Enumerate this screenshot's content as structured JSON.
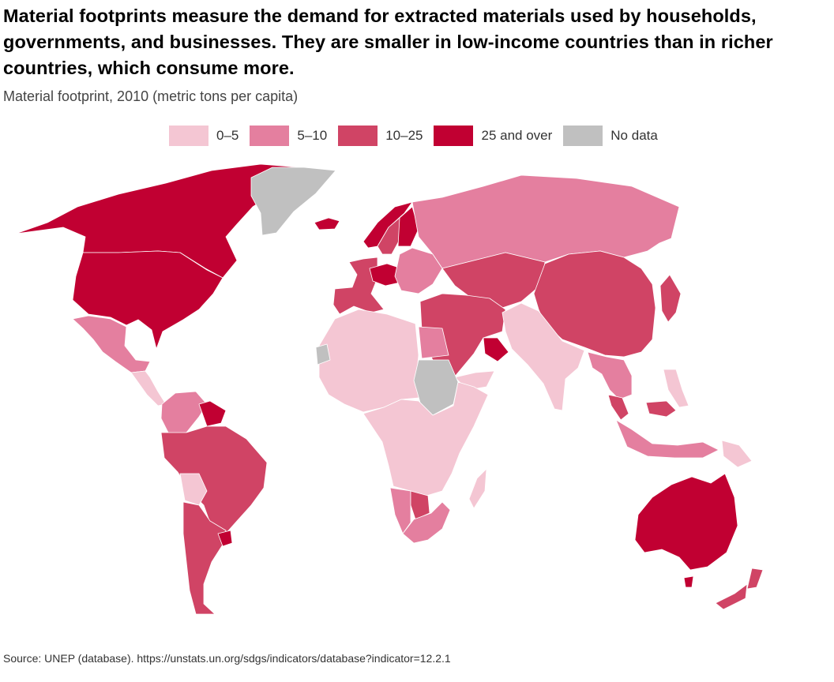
{
  "title": "Material footprints measure the demand for extracted materials used by households, governments, and businesses. They are smaller in low-income countries than in richer countries, which consume more.",
  "subtitle": "Material footprint, 2010 (metric tons per capita)",
  "legend": [
    {
      "label": "0–5",
      "color": "#f4c6d3"
    },
    {
      "label": "5–10",
      "color": "#e47f9f"
    },
    {
      "label": "10–25",
      "color": "#d04465"
    },
    {
      "label": "25 and over",
      "color": "#c10032"
    },
    {
      "label": "No data",
      "color": "#c0c0c0"
    }
  ],
  "map": {
    "regions": [
      {
        "name": "Canada",
        "class": "25 and over"
      },
      {
        "name": "United States",
        "class": "25 and over"
      },
      {
        "name": "Greenland",
        "class": "No data"
      },
      {
        "name": "Mexico",
        "class": "5–10"
      },
      {
        "name": "Central America",
        "class": "0–5"
      },
      {
        "name": "Colombia / Venezuela",
        "class": "5–10"
      },
      {
        "name": "Guyana / Suriname",
        "class": "25 and over"
      },
      {
        "name": "Brazil / Peru",
        "class": "10–25"
      },
      {
        "name": "Bolivia",
        "class": "0–5"
      },
      {
        "name": "Chile / Argentina",
        "class": "10–25"
      },
      {
        "name": "Uruguay",
        "class": "25 and over"
      },
      {
        "name": "Iceland",
        "class": "25 and over"
      },
      {
        "name": "Norway",
        "class": "25 and over"
      },
      {
        "name": "Sweden",
        "class": "10–25"
      },
      {
        "name": "Finland",
        "class": "25 and over"
      },
      {
        "name": "Western Europe",
        "class": "10–25"
      },
      {
        "name": "Central Europe",
        "class": "25 and over"
      },
      {
        "name": "Eastern Europe",
        "class": "5–10"
      },
      {
        "name": "Russia",
        "class": "5–10"
      },
      {
        "name": "Kazakhstan / Central Asia",
        "class": "10–25"
      },
      {
        "name": "Mongolia / China",
        "class": "10–25"
      },
      {
        "name": "Korea / Japan",
        "class": "10–25"
      },
      {
        "name": "Middle East",
        "class": "10–25"
      },
      {
        "name": "Gulf states",
        "class": "25 and over"
      },
      {
        "name": "Yemen",
        "class": "0–5"
      },
      {
        "name": "India / South Asia",
        "class": "0–5"
      },
      {
        "name": "Southeast Asia",
        "class": "5–10"
      },
      {
        "name": "Malaysia",
        "class": "10–25"
      },
      {
        "name": "Indonesia",
        "class": "5–10"
      },
      {
        "name": "Philippines",
        "class": "0–5"
      },
      {
        "name": "Papua New Guinea",
        "class": "0–5"
      },
      {
        "name": "North Africa",
        "class": "0–5"
      },
      {
        "name": "Egypt",
        "class": "5–10"
      },
      {
        "name": "Western Sahara",
        "class": "No data"
      },
      {
        "name": "Sudan",
        "class": "No data"
      },
      {
        "name": "Sub-Saharan Africa",
        "class": "0–5"
      },
      {
        "name": "Namibia",
        "class": "5–10"
      },
      {
        "name": "Botswana",
        "class": "10–25"
      },
      {
        "name": "South Africa",
        "class": "5–10"
      },
      {
        "name": "Madagascar",
        "class": "0–5"
      },
      {
        "name": "Australia",
        "class": "25 and over"
      },
      {
        "name": "New Zealand",
        "class": "10–25"
      }
    ]
  },
  "source": "Source: UNEP (database). https://unstats.un.org/sdgs/indicators/database?indicator=12.2.1"
}
